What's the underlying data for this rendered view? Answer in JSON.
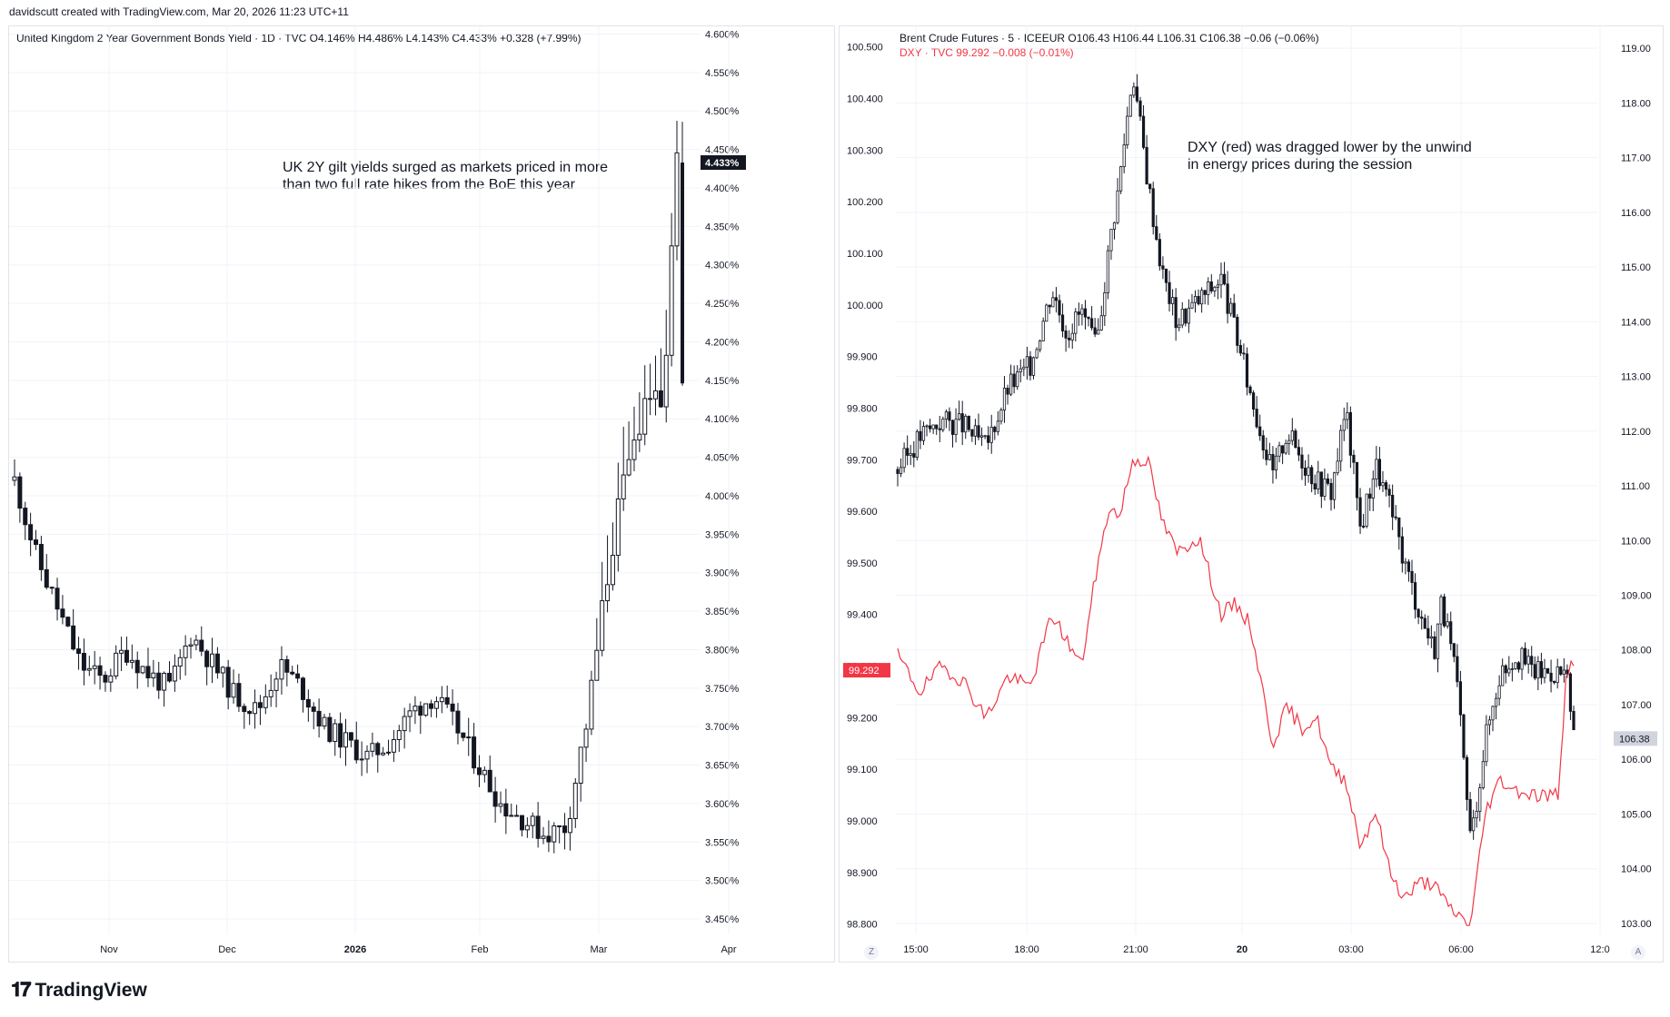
{
  "header": {
    "credit": "davidscutt created with TradingView.com, Mar 20, 2026 11:23 UTC+11"
  },
  "brand": {
    "name": "TradingView",
    "icon": "tradingview-logo-icon"
  },
  "colors": {
    "candle": "#131722",
    "dxy": "#f23645",
    "grid": "#f0f3fa",
    "axis_text": "#131722"
  },
  "left_chart": {
    "legend": "United Kingdom 2 Year Government Bonds Yield · 1D · TVC  O4.146%  H4.486%  L4.143%  C4.433%  +0.328 (+7.99%)",
    "annotation": [
      "UK 2Y gilt yields surged as markets priced in more",
      "than two full rate hikes from the BoE this year"
    ],
    "last_price_label": "4.433%"
  },
  "right_chart": {
    "legend_brent": "Brent Crude Futures · 5 · ICEEUR  O106.43  H106.44  L106.31  C106.38  −0.06 (−0.06%)",
    "legend_dxy": "DXY · TVC  99.292  −0.008 (−0.01%)",
    "annotation": [
      "DXY (red) was dragged lower by the unwind",
      "in energy prices during the session"
    ],
    "dxy_last_label": "99.292",
    "brent_last_label": "106.38",
    "z_button": "Z",
    "a_button": "A"
  },
  "chart_data": [
    {
      "type": "line",
      "title": "United Kingdom 2 Year Government Bonds Yield",
      "series": [
        {
          "name": "United Kingdom 2 Year Government Bonds Yield",
          "close_path": [
            [
              0,
              4.02
            ],
            [
              0.03,
              3.92
            ],
            [
              0.06,
              3.85
            ],
            [
              0.09,
              3.78
            ],
            [
              0.12,
              3.76
            ],
            [
              0.15,
              3.8
            ],
            [
              0.18,
              3.77
            ],
            [
              0.21,
              3.75
            ],
            [
              0.24,
              3.82
            ],
            [
              0.27,
              3.78
            ],
            [
              0.3,
              3.74
            ],
            [
              0.33,
              3.72
            ],
            [
              0.36,
              3.78
            ],
            [
              0.39,
              3.75
            ],
            [
              0.42,
              3.7
            ],
            [
              0.45,
              3.68
            ],
            [
              0.48,
              3.66
            ],
            [
              0.51,
              3.68
            ],
            [
              0.54,
              3.72
            ],
            [
              0.57,
              3.74
            ],
            [
              0.6,
              3.7
            ],
            [
              0.63,
              3.65
            ],
            [
              0.66,
              3.6
            ],
            [
              0.69,
              3.58
            ],
            [
              0.72,
              3.56
            ],
            [
              0.75,
              3.57
            ],
            [
              0.78,
              3.72
            ],
            [
              0.8,
              3.86
            ],
            [
              0.82,
              3.98
            ],
            [
              0.84,
              4.06
            ],
            [
              0.86,
              4.14
            ],
            [
              0.88,
              4.1
            ],
            [
              0.9,
              4.433
            ]
          ]
        }
      ],
      "x_tick_labels": [
        "Nov",
        "Dec",
        "2026",
        "Feb",
        "Mar",
        "Apr"
      ],
      "y_tick_labels": [
        "4.600%",
        "4.550%",
        "4.500%",
        "4.450%",
        "4.400%",
        "4.350%",
        "4.300%",
        "4.250%",
        "4.200%",
        "4.150%",
        "4.100%",
        "4.050%",
        "4.000%",
        "3.950%",
        "3.900%",
        "3.850%",
        "3.800%",
        "3.750%",
        "3.700%",
        "3.650%",
        "3.600%",
        "3.550%",
        "3.500%",
        "3.450%"
      ],
      "ylim": [
        3.43,
        4.61
      ],
      "last": 4.433,
      "grid": true
    },
    {
      "type": "line",
      "title": "Brent Crude Futures",
      "series": [
        {
          "name": "Brent Crude Futures",
          "axis": "right",
          "path": [
            [
              0,
              111.3
            ],
            [
              0.03,
              111.9
            ],
            [
              0.06,
              112.2
            ],
            [
              0.09,
              112.1
            ],
            [
              0.12,
              111.7
            ],
            [
              0.15,
              112.8
            ],
            [
              0.18,
              113.2
            ],
            [
              0.21,
              114.6
            ],
            [
              0.23,
              113.8
            ],
            [
              0.25,
              114.2
            ],
            [
              0.27,
              113.5
            ],
            [
              0.29,
              115.6
            ],
            [
              0.3,
              116.4
            ],
            [
              0.32,
              118.6
            ],
            [
              0.34,
              116.6
            ],
            [
              0.36,
              114.9
            ],
            [
              0.38,
              114.0
            ],
            [
              0.41,
              114.4
            ],
            [
              0.44,
              114.8
            ],
            [
              0.46,
              113.8
            ],
            [
              0.48,
              112.7
            ],
            [
              0.51,
              111.2
            ],
            [
              0.53,
              112.0
            ],
            [
              0.55,
              111.5
            ],
            [
              0.57,
              111.1
            ],
            [
              0.59,
              110.9
            ],
            [
              0.61,
              112.4
            ],
            [
              0.63,
              110.2
            ],
            [
              0.65,
              111.4
            ],
            [
              0.67,
              110.6
            ],
            [
              0.69,
              109.6
            ],
            [
              0.71,
              108.7
            ],
            [
              0.73,
              108.0
            ],
            [
              0.74,
              108.9
            ],
            [
              0.76,
              107.5
            ],
            [
              0.78,
              104.5
            ],
            [
              0.8,
              106.4
            ],
            [
              0.82,
              107.6
            ],
            [
              0.84,
              107.9
            ],
            [
              0.87,
              107.6
            ],
            [
              0.9,
              107.6
            ],
            [
              0.91,
              107.5
            ],
            [
              0.92,
              106.38
            ]
          ]
        },
        {
          "name": "DXY",
          "axis": "left",
          "path": [
            [
              0,
              99.32
            ],
            [
              0.03,
              99.25
            ],
            [
              0.06,
              99.3
            ],
            [
              0.09,
              99.27
            ],
            [
              0.12,
              99.2
            ],
            [
              0.15,
              99.28
            ],
            [
              0.18,
              99.26
            ],
            [
              0.21,
              99.4
            ],
            [
              0.23,
              99.35
            ],
            [
              0.25,
              99.3
            ],
            [
              0.27,
              99.48
            ],
            [
              0.29,
              99.62
            ],
            [
              0.3,
              99.58
            ],
            [
              0.32,
              99.7
            ],
            [
              0.34,
              99.7
            ],
            [
              0.36,
              99.58
            ],
            [
              0.38,
              99.52
            ],
            [
              0.41,
              99.55
            ],
            [
              0.44,
              99.4
            ],
            [
              0.46,
              99.42
            ],
            [
              0.48,
              99.38
            ],
            [
              0.51,
              99.15
            ],
            [
              0.53,
              99.22
            ],
            [
              0.55,
              99.18
            ],
            [
              0.57,
              99.2
            ],
            [
              0.59,
              99.1
            ],
            [
              0.61,
              99.08
            ],
            [
              0.63,
              98.95
            ],
            [
              0.65,
              99.02
            ],
            [
              0.67,
              98.9
            ],
            [
              0.69,
              98.85
            ],
            [
              0.71,
              98.88
            ],
            [
              0.73,
              98.88
            ],
            [
              0.74,
              98.85
            ],
            [
              0.76,
              98.82
            ],
            [
              0.78,
              98.8
            ],
            [
              0.8,
              99.02
            ],
            [
              0.82,
              99.08
            ],
            [
              0.84,
              99.06
            ],
            [
              0.87,
              99.05
            ],
            [
              0.9,
              99.05
            ],
            [
              0.91,
              99.3
            ],
            [
              0.92,
              99.292
            ]
          ]
        }
      ],
      "x_tick_labels": [
        "15:00",
        "18:00",
        "21:00",
        "20",
        "03:00",
        "06:00",
        "12:0"
      ],
      "y_left_tick_labels": [
        "100.500",
        "100.400",
        "100.300",
        "100.200",
        "100.100",
        "100.000",
        "99.900",
        "99.800",
        "99.700",
        "99.600",
        "99.500",
        "99.400",
        "99.300",
        "99.200",
        "99.100",
        "99.000",
        "98.900",
        "98.800"
      ],
      "y_right_tick_labels": [
        "119.00",
        "118.00",
        "117.00",
        "116.00",
        "115.00",
        "114.00",
        "113.00",
        "112.00",
        "111.00",
        "110.00",
        "109.00",
        "108.00",
        "107.00",
        "106.00",
        "105.00",
        "104.00",
        "103.00"
      ],
      "ylim_left": [
        98.78,
        100.54
      ],
      "ylim_right": [
        102.8,
        119.4
      ],
      "last_brent": 106.38,
      "last_dxy": 99.292,
      "grid": true
    }
  ]
}
